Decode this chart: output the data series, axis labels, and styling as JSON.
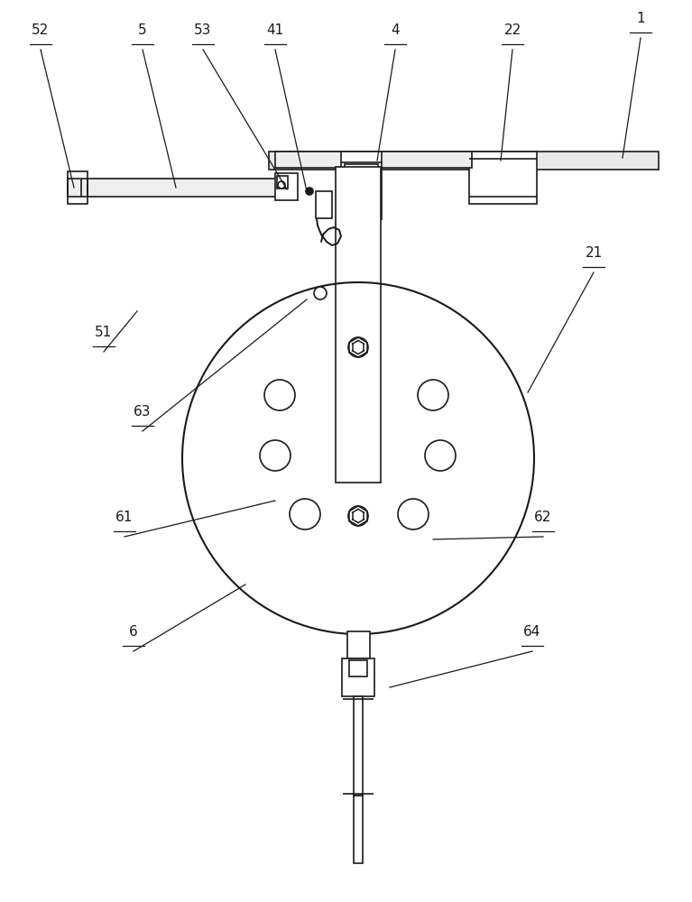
{
  "bg_color": "#ffffff",
  "line_color": "#1a1a1a",
  "lw": 1.2,
  "figsize": [
    7.67,
    10.0
  ],
  "dpi": 100,
  "leaders": [
    [
      "1",
      710,
      42,
      690,
      175
    ],
    [
      "22",
      568,
      55,
      555,
      178
    ],
    [
      "4",
      438,
      55,
      418,
      178
    ],
    [
      "41",
      305,
      55,
      340,
      212
    ],
    [
      "53",
      225,
      55,
      318,
      210
    ],
    [
      "5",
      158,
      55,
      195,
      208
    ],
    [
      "52",
      45,
      55,
      82,
      208
    ],
    [
      "51",
      115,
      390,
      152,
      345
    ],
    [
      "21",
      658,
      302,
      585,
      435
    ],
    [
      "63",
      158,
      478,
      340,
      332
    ],
    [
      "61",
      138,
      595,
      305,
      555
    ],
    [
      "6",
      148,
      722,
      272,
      648
    ],
    [
      "62",
      602,
      595,
      480,
      598
    ],
    [
      "64",
      590,
      722,
      432,
      762
    ]
  ]
}
